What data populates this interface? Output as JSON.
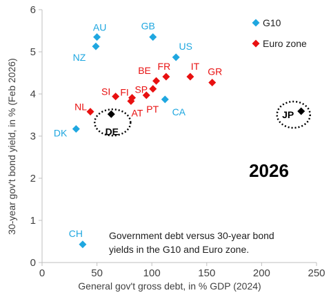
{
  "chart_data": {
    "type": "scatter",
    "xlabel": "General gov't gross debt, in % GDP (2024)",
    "ylabel": "30-year gov't bond yield, in % (Feb 2026)",
    "xlim": [
      0,
      250
    ],
    "ylim": [
      0,
      6
    ],
    "xticks": [
      0,
      50,
      100,
      150,
      200,
      250
    ],
    "yticks": [
      0,
      1,
      2,
      3,
      4,
      5,
      6
    ],
    "grid": false,
    "legend_position": "top-right",
    "year_label": "2026",
    "note_lines": [
      "Government debt versus 30-year bond",
      "yields in the G10 and Euro zone."
    ],
    "colors": {
      "G10": "#1fa7e0",
      "Euro zone": "#e81010",
      "highlight": "#000000"
    },
    "series": [
      {
        "name": "G10",
        "points": [
          {
            "label": "AU",
            "x": 50,
            "y": 5.35
          },
          {
            "label": "NZ",
            "x": 49,
            "y": 5.13
          },
          {
            "label": "GB",
            "x": 101,
            "y": 5.35
          },
          {
            "label": "US",
            "x": 122,
            "y": 4.87
          },
          {
            "label": "CA",
            "x": 112,
            "y": 3.87
          },
          {
            "label": "DK",
            "x": 31,
            "y": 3.17
          },
          {
            "label": "CH",
            "x": 37,
            "y": 0.43
          }
        ]
      },
      {
        "name": "Euro zone",
        "points": [
          {
            "label": "NL",
            "x": 44,
            "y": 3.58
          },
          {
            "label": "SI",
            "x": 67,
            "y": 3.94
          },
          {
            "label": "FI",
            "x": 82,
            "y": 3.91
          },
          {
            "label": "AT",
            "x": 81,
            "y": 3.83
          },
          {
            "label": "BE",
            "x": 104,
            "y": 4.31
          },
          {
            "label": "SP",
            "x": 101,
            "y": 4.12
          },
          {
            "label": "PT",
            "x": 95,
            "y": 3.97
          },
          {
            "label": "FR",
            "x": 113,
            "y": 4.41
          },
          {
            "label": "IT",
            "x": 135,
            "y": 4.41
          },
          {
            "label": "GR",
            "x": 155,
            "y": 4.27
          }
        ]
      }
    ],
    "highlighted": [
      {
        "label": "DE",
        "x": 63,
        "y": 3.52
      },
      {
        "label": "JP",
        "x": 236,
        "y": 3.59
      }
    ]
  }
}
